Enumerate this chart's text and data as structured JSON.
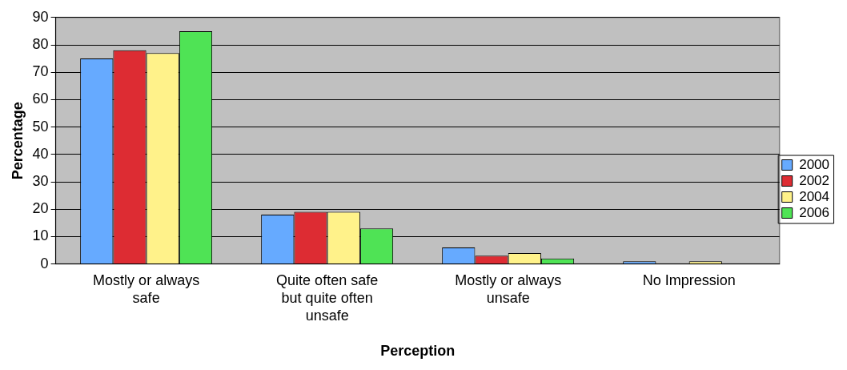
{
  "chart_data": {
    "type": "bar",
    "xlabel": "Perception",
    "ylabel": "Percentage",
    "categories": [
      "Mostly or always safe",
      "Quite often safe but quite often unsafe",
      "Mostly or always unsafe",
      "No Impression"
    ],
    "series": [
      {
        "name": "2000",
        "color": "#66aaff",
        "values": [
          75,
          18,
          6,
          1
        ]
      },
      {
        "name": "2002",
        "color": "#dd2c33",
        "values": [
          78,
          19,
          3,
          0
        ]
      },
      {
        "name": "2004",
        "color": "#fff28a",
        "values": [
          77,
          19,
          4,
          1
        ]
      },
      {
        "name": "2006",
        "color": "#4fe355",
        "values": [
          85,
          13,
          2,
          0
        ]
      }
    ],
    "ylim": [
      0,
      90
    ],
    "yticks": [
      0,
      10,
      20,
      30,
      40,
      50,
      60,
      70,
      80,
      90
    ],
    "grid": "y",
    "legend": "right"
  }
}
